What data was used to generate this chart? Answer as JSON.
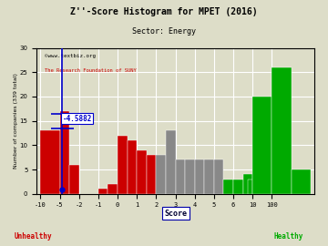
{
  "title": "Z''-Score Histogram for MPET (2016)",
  "subtitle": "Sector: Energy",
  "watermark1": "©www.textbiz.org",
  "watermark2": "The Research Foundation of SUNY",
  "xlabel": "Score",
  "ylabel": "Number of companies (339 total)",
  "unhealthy_label": "Unhealthy",
  "healthy_label": "Healthy",
  "marker_value": -4.5882,
  "marker_label": "-4.5882",
  "bg_color": "#ddddc8",
  "grid_color": "#ffffff",
  "title_color": "#000000",
  "subtitle_color": "#000000",
  "marker_color": "#0000cc",
  "watermark1_color": "#000000",
  "watermark2_color": "#cc0000",
  "unhealthy_color": "#cc0000",
  "healthy_color": "#00aa00",
  "red_color": "#cc0000",
  "gray_color": "#888888",
  "green_color": "#00aa00",
  "ylim": [
    0,
    30
  ],
  "tick_labels": [
    "-10",
    "-5",
    "-2",
    "-1",
    "0",
    "1",
    "2",
    "3",
    "4",
    "5",
    "6",
    "10",
    "100"
  ],
  "tick_positions": [
    0,
    1,
    2,
    3,
    4,
    5,
    6,
    7,
    8,
    9,
    10,
    11,
    12
  ],
  "bars": [
    [
      0.0,
      1.0,
      13,
      "red"
    ],
    [
      1.0,
      0.5,
      17,
      "red"
    ],
    [
      1.5,
      0.5,
      6,
      "red"
    ],
    [
      3.0,
      0.5,
      1,
      "red"
    ],
    [
      3.5,
      0.5,
      2,
      "red"
    ],
    [
      4.0,
      0.5,
      12,
      "red"
    ],
    [
      4.5,
      0.5,
      11,
      "red"
    ],
    [
      5.0,
      0.5,
      9,
      "red"
    ],
    [
      5.5,
      0.5,
      8,
      "red"
    ],
    [
      6.0,
      0.5,
      8,
      "gray"
    ],
    [
      6.5,
      0.5,
      13,
      "gray"
    ],
    [
      7.0,
      0.5,
      7,
      "gray"
    ],
    [
      7.5,
      0.5,
      7,
      "gray"
    ],
    [
      8.0,
      0.5,
      7,
      "gray"
    ],
    [
      8.5,
      0.5,
      7,
      "gray"
    ],
    [
      9.0,
      0.5,
      7,
      "gray"
    ],
    [
      9.5,
      0.5,
      3,
      "green"
    ],
    [
      10.0,
      0.5,
      3,
      "green"
    ],
    [
      10.5,
      0.5,
      4,
      "green"
    ],
    [
      10.75,
      0.25,
      3,
      "green"
    ],
    [
      11.0,
      1.0,
      20,
      "green"
    ],
    [
      12.0,
      1.0,
      26,
      "green"
    ],
    [
      13.0,
      1.0,
      5,
      "green"
    ]
  ]
}
